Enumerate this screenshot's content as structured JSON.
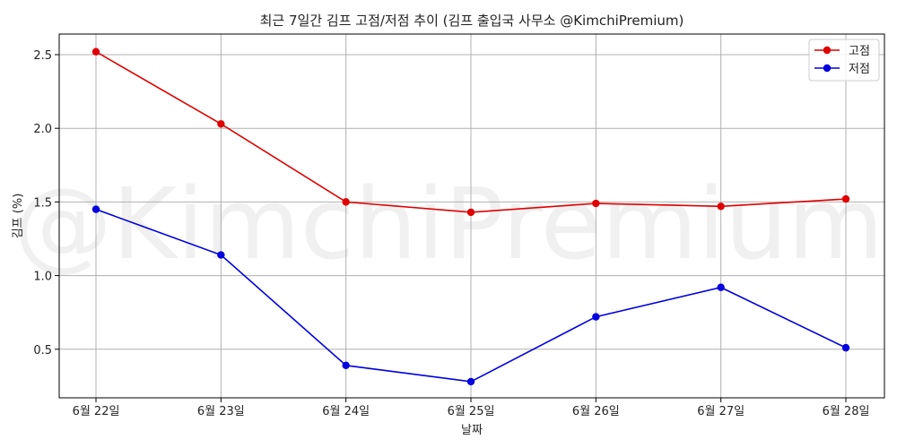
{
  "chart_data": {
    "type": "line",
    "title": "최근 7일간 김프 고점/저점 추이 (김프 출입국 사무소 @KimchiPremium)",
    "xlabel": "날짜",
    "ylabel": "김프 (%)",
    "categories": [
      "6월 22일",
      "6월 23일",
      "6월 24일",
      "6월 25일",
      "6월 26일",
      "6월 27일",
      "6월 28일"
    ],
    "series": [
      {
        "name": "고점",
        "color": "#e00000",
        "values": [
          2.52,
          2.03,
          1.5,
          1.43,
          1.49,
          1.47,
          1.52
        ]
      },
      {
        "name": "저점",
        "color": "#0000e0",
        "values": [
          1.45,
          1.14,
          0.39,
          0.28,
          0.72,
          0.92,
          0.51
        ]
      }
    ],
    "ylim": [
      0.17,
      2.64
    ],
    "yticks": [
      "0.5",
      "1.0",
      "1.5",
      "2.0",
      "2.5"
    ],
    "grid": true,
    "legend_position": "top-right",
    "watermark": "@KimchiPremium"
  }
}
